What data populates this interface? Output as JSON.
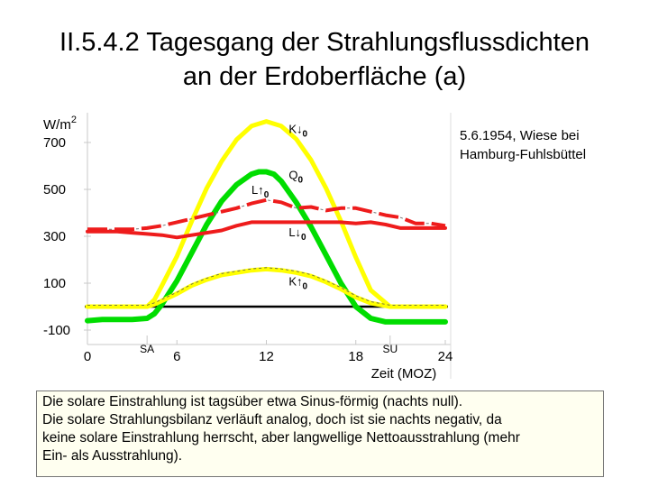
{
  "title": {
    "line1": "II.5.4.2 Tagesgang der Strahlungsflussdichten",
    "line2": "an der Erdoberfläche (a)"
  },
  "annotation": {
    "line1": "5.6.1954, Wiese bei",
    "line2": "Hamburg-Fuhlsbüttel"
  },
  "description": {
    "line1": "Die solare Einstrahlung ist tagsüber etwa Sinus-förmig (nachts null).",
    "line2": "Die solare Strahlungsbilanz verläuft analog, doch ist sie nachts negativ, da",
    "line3": "keine solare Einstrahlung herrscht, aber langwellige Nettoausstrahlung (mehr",
    "line4": "Ein- als Ausstrahlung)."
  },
  "chart_data": {
    "type": "line",
    "ylabel": "W/m2",
    "xlabel": "Zeit (MOZ)",
    "xlim": [
      0,
      24
    ],
    "ylim": [
      -100,
      800
    ],
    "x_ticks": [
      0,
      6,
      12,
      18,
      24
    ],
    "x_tick_labels": [
      "0",
      "6",
      "12",
      "18",
      "24"
    ],
    "y_ticks": [
      -100,
      100,
      300,
      500,
      700
    ],
    "y_tick_labels": [
      "-100",
      "100",
      "300",
      "500",
      "700"
    ],
    "event_labels": [
      {
        "x": 4.0,
        "label": "SA"
      },
      {
        "x": 20.3,
        "label": "SU"
      }
    ],
    "series": [
      {
        "name": "K↓0",
        "color": "#ffff00",
        "dashed": false,
        "x": [
          0,
          4.0,
          4.5,
          5,
          6,
          7,
          8,
          9,
          10,
          11,
          12,
          13,
          14,
          15,
          16,
          17,
          18,
          19,
          20.3,
          21,
          24
        ],
        "y": [
          0,
          0,
          30,
          90,
          215,
          365,
          505,
          620,
          712,
          770,
          790,
          770,
          715,
          625,
          505,
          365,
          210,
          70,
          0,
          0,
          0
        ]
      },
      {
        "name": "Q0",
        "color": "#00dd00",
        "dashed": false,
        "x": [
          0,
          1,
          2,
          3,
          4,
          4.5,
          5,
          6,
          7,
          8,
          9,
          10,
          11,
          11.5,
          12,
          12.5,
          13,
          14,
          15,
          16,
          17,
          18,
          19,
          20,
          21,
          22,
          23,
          24
        ],
        "y": [
          -60,
          -55,
          -55,
          -55,
          -50,
          -30,
          10,
          110,
          230,
          350,
          450,
          520,
          565,
          575,
          575,
          565,
          535,
          445,
          340,
          220,
          100,
          0,
          -50,
          -65,
          -65,
          -65,
          -65,
          -65
        ]
      },
      {
        "name": "L↑0",
        "color": "#ee1c1c",
        "dashed": true,
        "x": [
          0,
          1,
          2,
          3,
          4,
          5,
          6,
          7,
          8,
          9,
          10,
          11,
          12,
          13,
          14,
          15,
          16,
          17,
          18,
          19,
          20,
          21,
          22,
          23,
          24
        ],
        "y": [
          330,
          330,
          330,
          330,
          335,
          345,
          360,
          375,
          390,
          405,
          420,
          440,
          455,
          445,
          420,
          425,
          410,
          420,
          420,
          405,
          390,
          380,
          355,
          355,
          345
        ]
      },
      {
        "name": "L↓0",
        "color": "#ee1c1c",
        "dashed": false,
        "x": [
          0,
          1,
          2,
          3,
          4,
          5,
          6,
          7,
          8,
          9,
          10,
          11,
          12,
          13,
          14,
          15,
          16,
          17,
          18,
          19,
          20,
          21,
          22,
          23,
          24
        ],
        "y": [
          320,
          320,
          320,
          315,
          310,
          305,
          295,
          305,
          315,
          325,
          345,
          360,
          360,
          360,
          360,
          360,
          360,
          360,
          355,
          360,
          350,
          335,
          335,
          335,
          335
        ]
      },
      {
        "name": "K↑0",
        "color": "#ffff00",
        "dashed": false,
        "x": [
          0,
          4.0,
          4.5,
          5,
          6,
          7,
          8,
          9,
          10,
          11,
          12,
          13,
          14,
          15,
          16,
          17,
          18,
          19,
          20.3,
          24
        ],
        "y": [
          0,
          0,
          10,
          25,
          55,
          90,
          115,
          135,
          145,
          155,
          160,
          155,
          145,
          130,
          105,
          75,
          40,
          15,
          0,
          0
        ]
      }
    ],
    "curve_labels": [
      {
        "series": "K↓0",
        "text": "K↓0",
        "x": 13.5,
        "y": 740
      },
      {
        "series": "Q0",
        "text": "Q0",
        "x": 13.5,
        "y": 545
      },
      {
        "series": "L↑0",
        "text": "L↑0",
        "x": 11.0,
        "y": 480
      },
      {
        "series": "L↓0",
        "text": "L↓0",
        "x": 13.5,
        "y": 300
      },
      {
        "series": "K↑0",
        "text": "K↑0",
        "x": 13.5,
        "y": 90
      }
    ]
  }
}
